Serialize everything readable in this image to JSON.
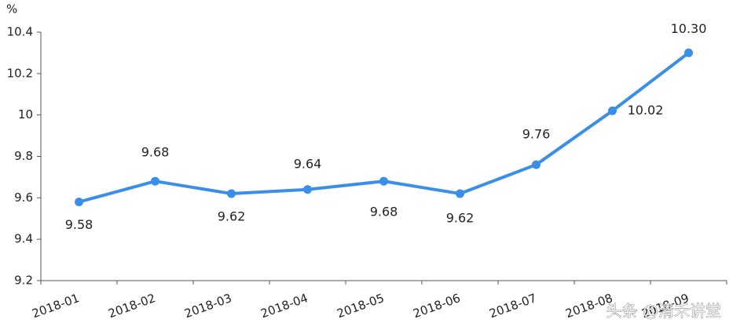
{
  "chart_data": {
    "type": "line",
    "y_label": "%",
    "categories": [
      "2018-01",
      "2018-02",
      "2018-03",
      "2018-04",
      "2018-05",
      "2018-06",
      "2018-07",
      "2018-08",
      "2018-09"
    ],
    "values": [
      9.58,
      9.68,
      9.62,
      9.64,
      9.68,
      9.62,
      9.76,
      10.02,
      10.3
    ],
    "value_labels": [
      "9.58",
      "9.68",
      "9.62",
      "9.64",
      "9.68",
      "9.62",
      "9.76",
      "10.02",
      "10.30"
    ],
    "color": "#3b8ee8",
    "ylim": [
      9.2,
      10.4
    ],
    "yticks": [
      9.2,
      9.4,
      9.6,
      9.8,
      10,
      10.2,
      10.4
    ],
    "grid": false,
    "watermark": "头条 @清禾讲堂"
  }
}
